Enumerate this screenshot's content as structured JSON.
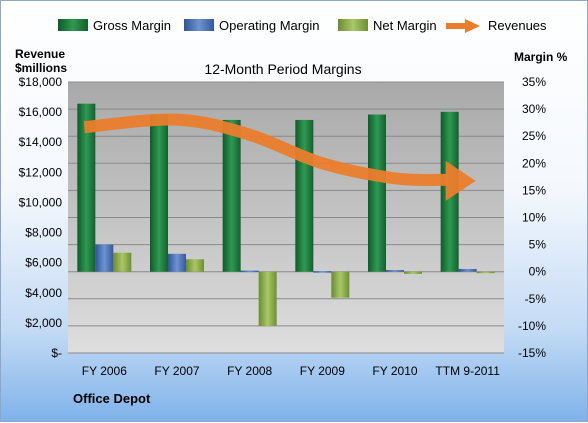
{
  "chart_data": {
    "type": "bar",
    "title": "12-Month Period Margins",
    "left_axis_title_line1": "Revenue",
    "left_axis_title_line2": "$millions",
    "right_axis_title": "Margin %",
    "company": "Office Depot",
    "categories": [
      "FY 2006",
      "FY 2007",
      "FY 2008",
      "FY 2009",
      "FY 2010",
      "TTM 9-2011"
    ],
    "left_ticks": [
      "$-",
      "$2,000",
      "$4,000",
      "$6,000",
      "$8,000",
      "$10,000",
      "$12,000",
      "$14,000",
      "$16,000",
      "$18,000"
    ],
    "left_ylim": [
      0,
      18000
    ],
    "right_ticks": [
      "-15%",
      "-10%",
      "-5%",
      "0%",
      "5%",
      "10%",
      "15%",
      "20%",
      "25%",
      "30%",
      "35%"
    ],
    "right_ylim": [
      -15,
      35
    ],
    "series": [
      {
        "name": "Gross Margin",
        "values": [
          31,
          29,
          28,
          28,
          29,
          29.5
        ],
        "color": "#1e7b3e"
      },
      {
        "name": "Operating Margin",
        "values": [
          5,
          3.3,
          0.2,
          0.1,
          0.3,
          0.5
        ],
        "color": "#4a72b8"
      },
      {
        "name": "Net Margin",
        "values": [
          3.5,
          2.3,
          -10,
          -4.8,
          -0.4,
          -0.2
        ],
        "color": "#8cb04a"
      },
      {
        "name": "Revenues",
        "values": [
          15000,
          15500,
          14500,
          12600,
          11600,
          11500
        ],
        "color": "#ea7d2c"
      }
    ],
    "legend_position": "top",
    "grid": true
  }
}
